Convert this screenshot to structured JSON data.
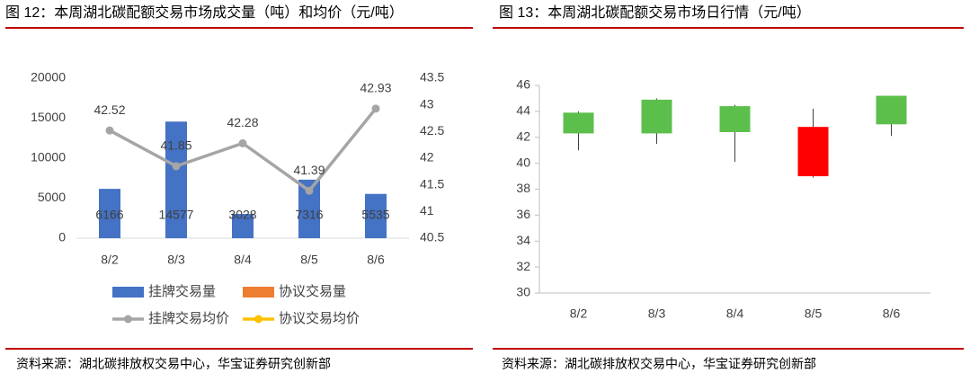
{
  "chart_data": [
    {
      "type": "bar",
      "title": "图 12：本周湖北碳配额交易市场成交量（吨）和均价（元/吨）",
      "source": "资料来源：湖北碳排放权交易中心，华宝证券研究创新部",
      "categories": [
        "8/2",
        "8/3",
        "8/4",
        "8/5",
        "8/6"
      ],
      "series": [
        {
          "name": "挂牌交易量",
          "type": "bar",
          "color": "#4472c4",
          "values": [
            6166,
            14577,
            3028,
            7316,
            5535
          ]
        },
        {
          "name": "协议交易量",
          "type": "bar",
          "color": "#ed7d31",
          "values": [
            null,
            null,
            null,
            null,
            null
          ]
        },
        {
          "name": "挂牌交易均价",
          "type": "line",
          "axis": "y2",
          "color": "#a5a5a5",
          "values": [
            42.52,
            41.85,
            42.28,
            41.39,
            42.93
          ]
        },
        {
          "name": "协议交易均价",
          "type": "line",
          "axis": "y2",
          "color": "#ffc000",
          "values": [
            null,
            null,
            null,
            null,
            null
          ]
        }
      ],
      "ylim": [
        0,
        20000
      ],
      "yticks": [
        0,
        5000,
        10000,
        15000,
        20000
      ],
      "y2lim": [
        40.5,
        43.5
      ],
      "y2ticks": [
        40.5,
        41,
        41.5,
        42,
        42.5,
        43,
        43.5
      ]
    },
    {
      "type": "candlestick",
      "title": "图 13：本周湖北碳配额交易市场日行情（元/吨）",
      "source": "资料来源：湖北碳排放权交易中心，华宝证券研究创新部",
      "categories": [
        "8/2",
        "8/3",
        "8/4",
        "8/5",
        "8/6"
      ],
      "open": [
        42.3,
        42.3,
        42.4,
        42.8,
        43.0
      ],
      "high": [
        44.0,
        45.0,
        44.5,
        44.2,
        45.2
      ],
      "low": [
        41.0,
        41.5,
        40.1,
        38.9,
        42.1
      ],
      "close": [
        43.9,
        44.9,
        44.4,
        39.0,
        45.2
      ],
      "up_color": "#5cbf4b",
      "down_color": "#ff0000",
      "ylim": [
        30,
        46
      ],
      "yticks": [
        30,
        32,
        34,
        36,
        38,
        40,
        42,
        44,
        46
      ]
    }
  ]
}
